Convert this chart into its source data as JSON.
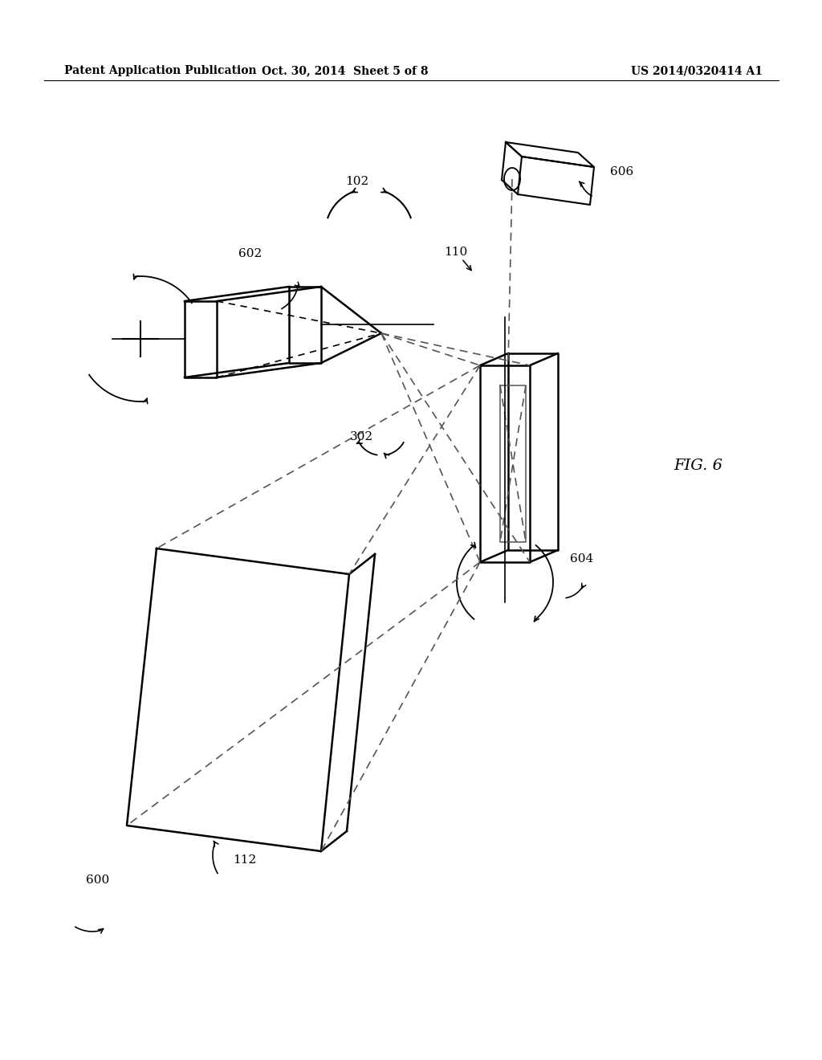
{
  "bg_color": "#ffffff",
  "lc": "#000000",
  "dc": "#555555",
  "header_left": "Patent Application Publication",
  "header_mid": "Oct. 30, 2014  Sheet 5 of 8",
  "header_right": "US 2014/0320414 A1",
  "fig_label": "FIG. 6"
}
